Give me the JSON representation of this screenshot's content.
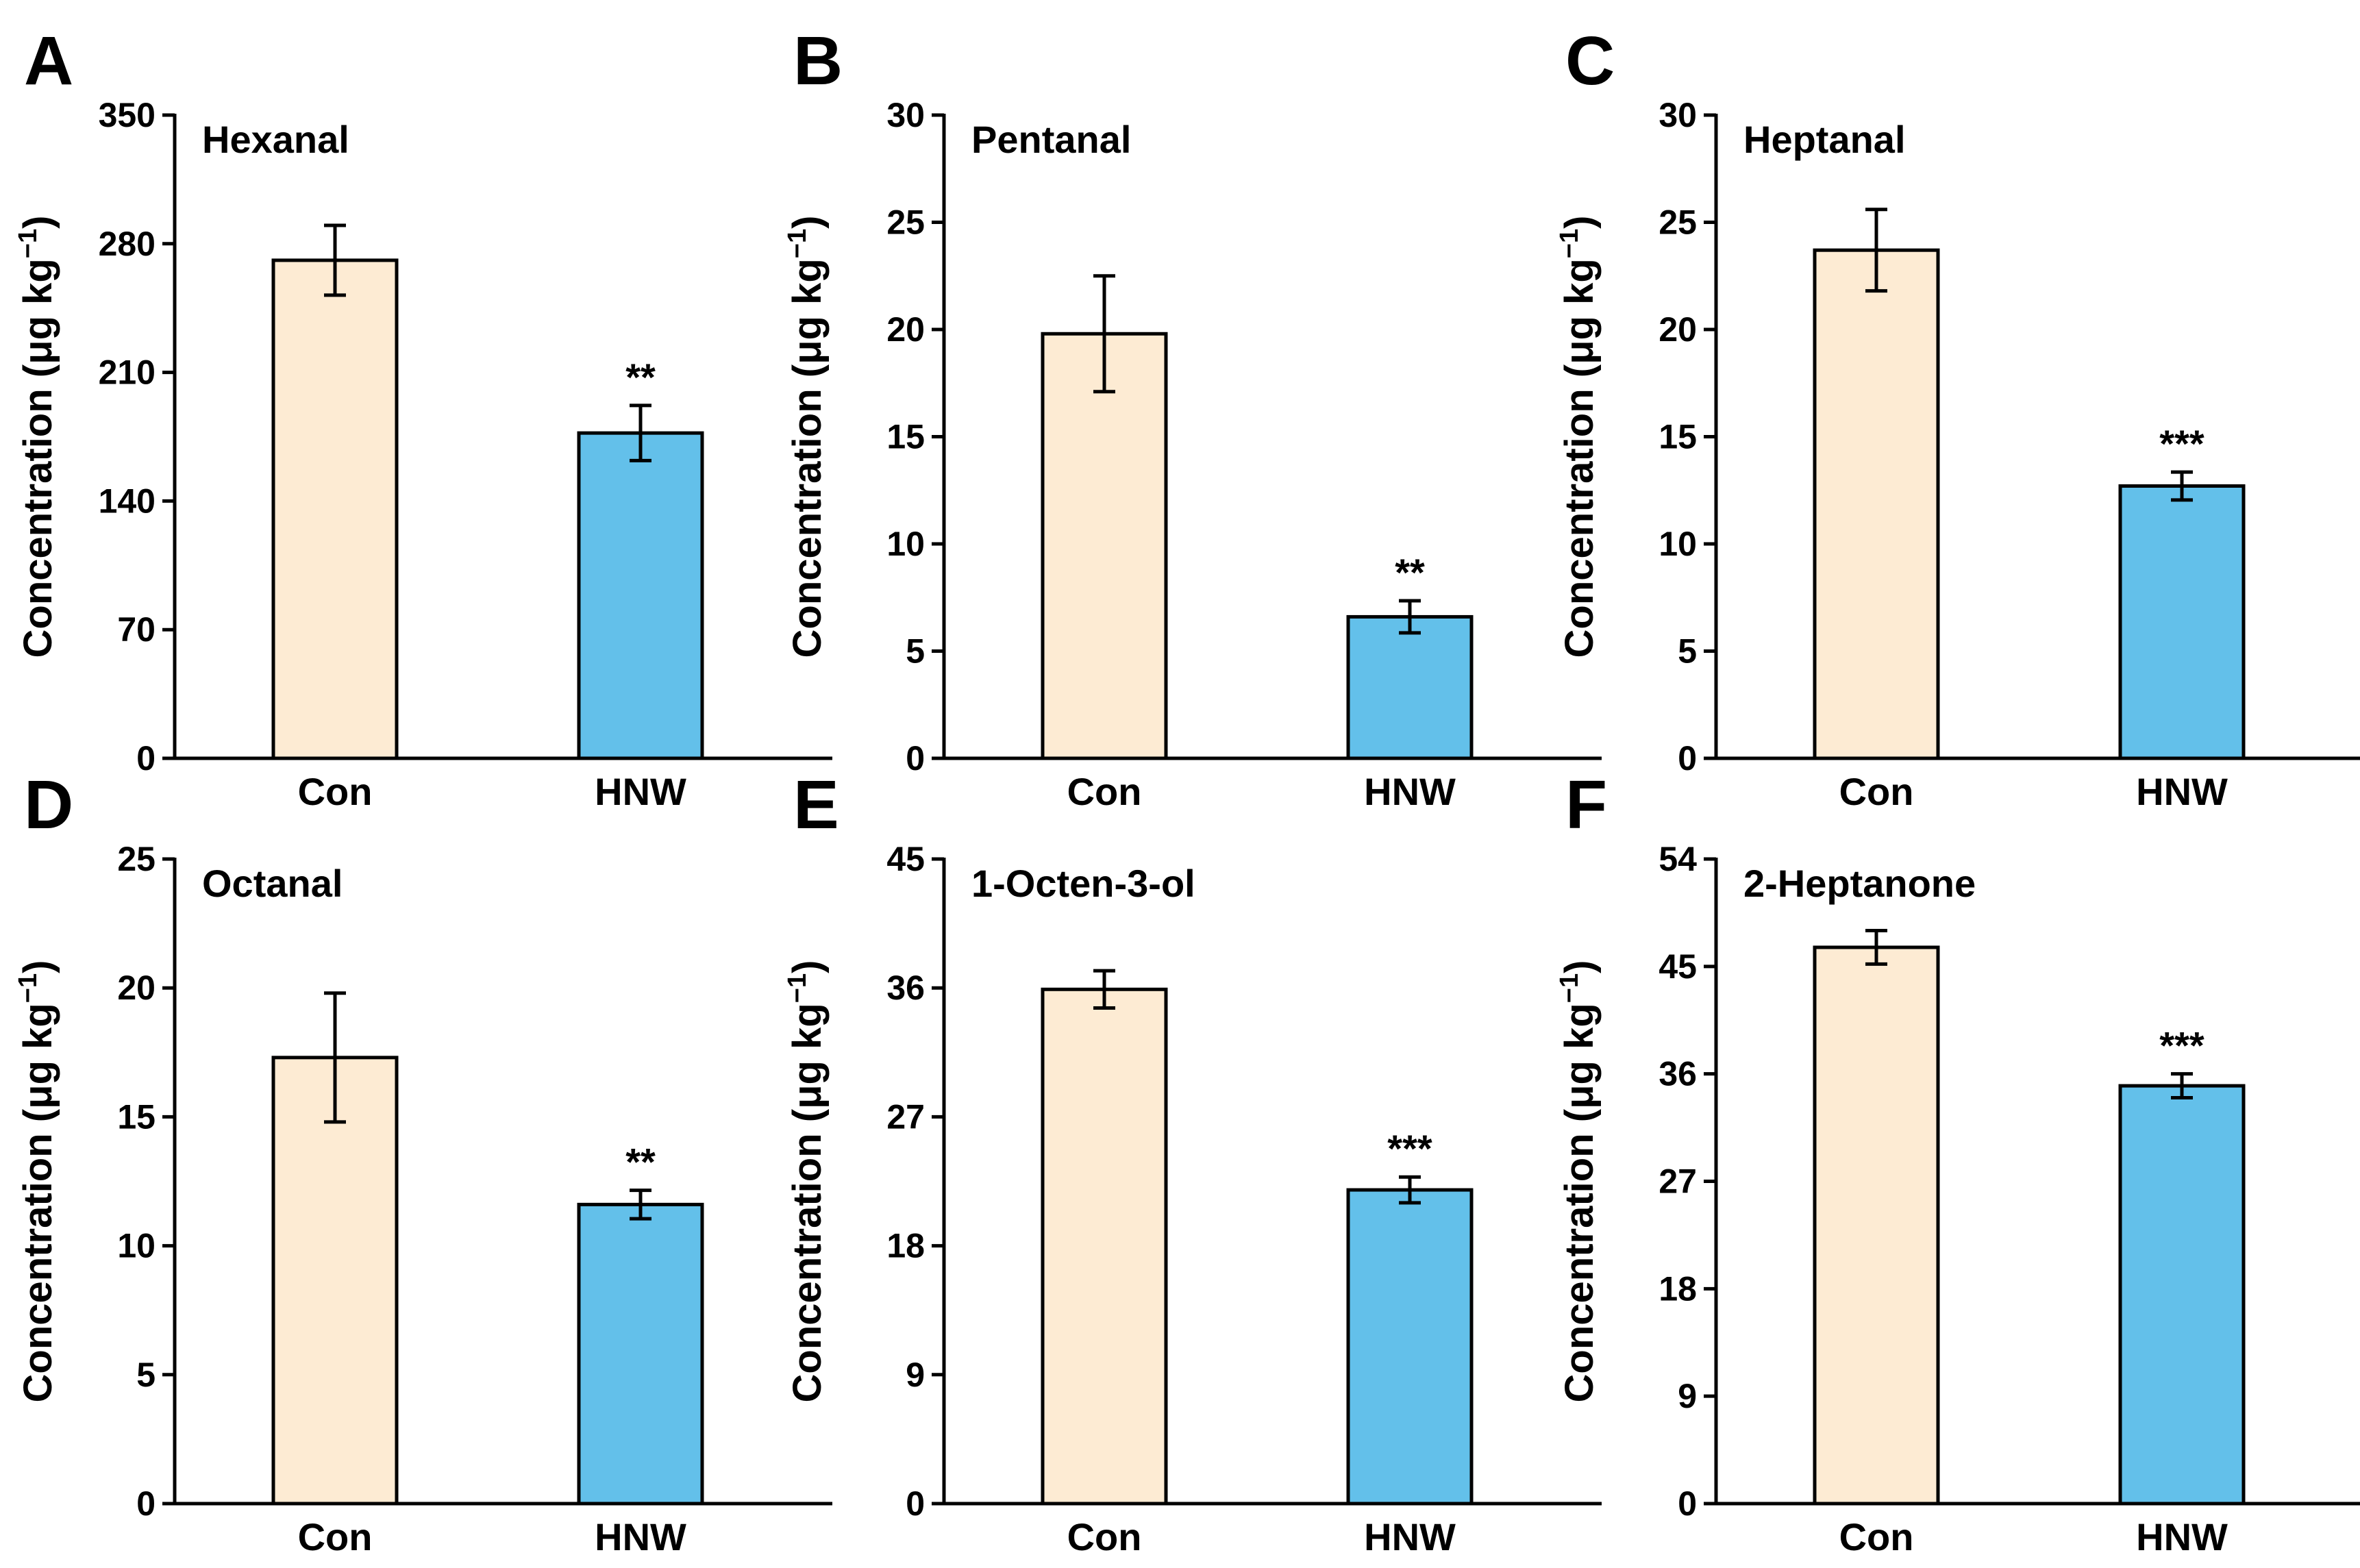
{
  "colors": {
    "con": "#fdebd3",
    "hnw": "#63c0ea",
    "axis": "#000000"
  },
  "ylabel": {
    "main": "Concentration (μg kg",
    "sup": "−1",
    "close": ")"
  },
  "chart_data": [
    {
      "type": "bar",
      "letter": "A",
      "title": "Hexanal",
      "categories": [
        "Con",
        "HNW"
      ],
      "values": [
        271,
        177
      ],
      "errors": [
        19,
        15
      ],
      "significance": [
        "",
        "**"
      ],
      "ylim": [
        0,
        350
      ],
      "yticks": [
        0,
        70,
        140,
        210,
        280,
        350
      ],
      "ytick_labels": [
        "0",
        "70",
        "140",
        "210",
        "280",
        "350"
      ],
      "ylabel": "Concentration (μg kg−1)",
      "xlabel": ""
    },
    {
      "type": "bar",
      "letter": "B",
      "title": "Pentanal",
      "categories": [
        "Con",
        "HNW"
      ],
      "values": [
        19.8,
        6.6
      ],
      "errors": [
        2.7,
        0.75
      ],
      "significance": [
        "",
        "**"
      ],
      "ylim": [
        0,
        30
      ],
      "yticks": [
        0,
        5,
        10,
        15,
        20,
        25,
        30
      ],
      "ytick_labels": [
        "0",
        "5",
        "10",
        "15",
        "20",
        "25",
        "30"
      ],
      "ylabel": "Concentration (μg kg−1)",
      "xlabel": ""
    },
    {
      "type": "bar",
      "letter": "C",
      "title": "Heptanal",
      "categories": [
        "Con",
        "HNW"
      ],
      "values": [
        23.7,
        12.7
      ],
      "errors": [
        1.9,
        0.65
      ],
      "significance": [
        "",
        "***"
      ],
      "ylim": [
        0,
        30
      ],
      "yticks": [
        0,
        5,
        10,
        15,
        20,
        25,
        30
      ],
      "ytick_labels": [
        "0",
        "5",
        "10",
        "15",
        "20",
        "25",
        "30"
      ],
      "ylabel": "Concentration (μg kg−1)",
      "xlabel": ""
    },
    {
      "type": "bar",
      "letter": "D",
      "title": "Octanal",
      "categories": [
        "Con",
        "HNW"
      ],
      "values": [
        17.3,
        11.6
      ],
      "errors": [
        2.5,
        0.55
      ],
      "significance": [
        "",
        "**"
      ],
      "ylim": [
        0,
        25
      ],
      "yticks": [
        0,
        5,
        10,
        15,
        20,
        25
      ],
      "ytick_labels": [
        "0",
        "5",
        "10",
        "15",
        "20",
        "25"
      ],
      "ylabel": "Concentration (μg kg−1)",
      "xlabel": ""
    },
    {
      "type": "bar",
      "letter": "E",
      "title": "1-Octen-3-ol",
      "categories": [
        "Con",
        "HNW"
      ],
      "values": [
        35.9,
        21.9
      ],
      "errors": [
        1.3,
        0.9
      ],
      "significance": [
        "",
        "***"
      ],
      "ylim": [
        0,
        45
      ],
      "yticks": [
        0,
        9,
        18,
        27,
        36,
        45
      ],
      "ytick_labels": [
        "0",
        "9",
        "18",
        "27",
        "36",
        "45"
      ],
      "ylabel": "Concentration (μg kg−1)",
      "xlabel": ""
    },
    {
      "type": "bar",
      "letter": "F",
      "title": "2-Heptanone",
      "categories": [
        "Con",
        "HNW"
      ],
      "values": [
        46.6,
        35.0
      ],
      "errors": [
        1.4,
        1.0
      ],
      "significance": [
        "",
        "***"
      ],
      "ylim": [
        0,
        54
      ],
      "yticks": [
        0,
        9,
        18,
        27,
        36,
        45,
        54
      ],
      "ytick_labels": [
        "0",
        "9",
        "18",
        "27",
        "36",
        "45",
        "54"
      ],
      "ylabel": "Concentration (μg kg−1)",
      "xlabel": ""
    }
  ]
}
